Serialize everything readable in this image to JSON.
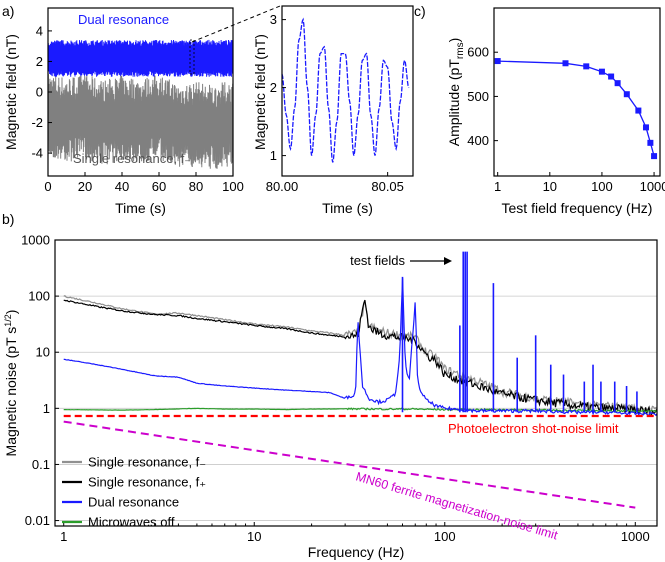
{
  "figure": {
    "panel_labels": [
      "a)",
      "b)",
      "c)"
    ]
  },
  "chart_data": [
    {
      "type": "line",
      "panel": "a-left",
      "xlabel": "Time (s)",
      "ylabel": "Magnetic field (nT)",
      "xlim": [
        0,
        100
      ],
      "ylim": [
        -5.5,
        5.5
      ],
      "xticks": [
        "0",
        "20",
        "40",
        "60",
        "80",
        "100"
      ],
      "yticks": [
        "-4",
        "-2",
        "0",
        "2",
        "4"
      ],
      "series": [
        {
          "name": "Dual resonance",
          "color": "#1a1aff",
          "center": 2.2,
          "half_width": 1.1
        },
        {
          "name": "Single resonance, f₋",
          "color": "#808080",
          "x": [
            0,
            10,
            20,
            30,
            40,
            50,
            60,
            70,
            80,
            90,
            100
          ],
          "y": [
            -1.5,
            -1.8,
            -1.6,
            -2.0,
            -1.7,
            -1.9,
            -1.6,
            -2.2,
            -2.1,
            -2.3,
            -2.0
          ]
        }
      ],
      "annotations": [
        "Dual resonance",
        "Single resonance, f₋"
      ]
    },
    {
      "type": "line",
      "panel": "a-zoom",
      "xlabel": "Time (s)",
      "ylabel": "Magnetic field (nT)",
      "xlim": [
        80.0,
        80.062
      ],
      "ylim": [
        0.7,
        3.2
      ],
      "xticks": [
        "80.00",
        "80.05"
      ],
      "yticks": [
        "1",
        "2",
        "3"
      ],
      "series": [
        {
          "name": "Dual resonance",
          "color": "#1a1aff",
          "x": [
            80.0,
            80.002,
            80.004,
            80.006,
            80.008,
            80.01,
            80.012,
            80.014,
            80.016,
            80.018,
            80.02,
            80.022,
            80.024,
            80.026,
            80.028,
            80.03,
            80.032,
            80.034,
            80.036,
            80.038,
            80.04,
            80.042,
            80.044,
            80.046,
            80.048,
            80.05,
            80.052,
            80.054,
            80.056,
            80.058,
            80.06
          ],
          "y": [
            2.2,
            1.6,
            1.1,
            1.7,
            2.7,
            3.0,
            2.0,
            1.0,
            1.6,
            2.5,
            2.6,
            1.7,
            0.9,
            1.5,
            2.5,
            2.5,
            1.8,
            1.0,
            1.6,
            2.4,
            2.5,
            1.6,
            1.0,
            1.7,
            2.4,
            2.3,
            1.5,
            1.1,
            1.8,
            2.4,
            2.0
          ]
        }
      ]
    },
    {
      "type": "line",
      "panel": "c",
      "xlabel": "Test field frequency (Hz)",
      "ylabel": "Amplitude (pT",
      "ylabel_sub": "rms",
      "ylabel_end": ")",
      "xscale": "log",
      "xlim": [
        0.85,
        1300
      ],
      "ylim": [
        320,
        700
      ],
      "xticks": [
        "1",
        "10",
        "100",
        "1000"
      ],
      "yticks": [
        "400",
        "500",
        "600"
      ],
      "series": [
        {
          "name": "Amplitude",
          "color": "#1a1aff",
          "x": [
            1,
            20,
            50,
            100,
            150,
            200,
            300,
            500,
            700,
            850,
            1000
          ],
          "y": [
            580,
            575,
            568,
            556,
            545,
            530,
            505,
            468,
            430,
            395,
            365
          ]
        }
      ]
    },
    {
      "type": "line",
      "panel": "b",
      "xlabel": "Frequency (Hz)",
      "ylabel": "Magnetic noise (pT s",
      "ylabel_sup": "1/2",
      "ylabel_end": ")",
      "xscale": "log",
      "yscale": "log",
      "xlim": [
        0.9,
        1300
      ],
      "ylim": [
        0.008,
        1000
      ],
      "grid": "horizontal",
      "xticks": [
        "1",
        "10",
        "100",
        "1000"
      ],
      "yticks": [
        "0.01",
        "0.1",
        "1",
        "10",
        "100",
        "1000"
      ],
      "legend": "bottom-left",
      "series": [
        {
          "name": "Single resonance, f₋",
          "color": "#909090",
          "x": [
            1,
            1.5,
            2,
            3,
            4,
            5,
            7,
            10,
            15,
            20,
            25,
            30,
            35,
            38,
            40,
            45,
            50,
            60,
            70,
            80,
            90,
            100,
            150,
            200,
            300,
            500,
            700,
            1000,
            1300
          ],
          "y": [
            100,
            75,
            60,
            48,
            50,
            45,
            38,
            32,
            28,
            24,
            22,
            20,
            22,
            70,
            30,
            24,
            22,
            20,
            18,
            10,
            8,
            5,
            3,
            2,
            1.5,
            1.2,
            1.1,
            1.0,
            0.9
          ]
        },
        {
          "name": "Single resonance, f₊",
          "color": "#000000",
          "x": [
            1,
            1.5,
            2,
            3,
            4,
            5,
            7,
            10,
            15,
            20,
            25,
            30,
            35,
            38,
            40,
            45,
            50,
            60,
            70,
            80,
            90,
            100,
            150,
            200,
            300,
            500,
            700,
            1000,
            1300
          ],
          "y": [
            85,
            65,
            55,
            47,
            45,
            40,
            35,
            30,
            26,
            22,
            20,
            19,
            20,
            90,
            28,
            22,
            20,
            18,
            16,
            9,
            7,
            4,
            2.5,
            1.8,
            1.4,
            1.1,
            1.0,
            0.95,
            0.85
          ]
        },
        {
          "name": "Dual resonance",
          "color": "#1a1aff",
          "x": [
            1,
            1.5,
            2,
            3,
            4,
            5,
            7,
            10,
            15,
            20,
            25,
            30,
            34,
            35,
            37,
            40,
            45,
            50,
            55,
            58,
            60,
            62,
            65,
            70,
            72,
            75,
            80,
            90,
            100,
            150,
            200,
            300,
            500,
            700,
            1000,
            1300
          ],
          "y": [
            7.5,
            6,
            5,
            3.8,
            3.6,
            2.8,
            2.5,
            2.3,
            2.1,
            2.0,
            1.9,
            1.5,
            1.8,
            38,
            2.5,
            1.5,
            1.3,
            1.4,
            1.8,
            8,
            220,
            6,
            3,
            80,
            3,
            2,
            1.4,
            1.1,
            1.0,
            0.9,
            0.9,
            0.9,
            0.85,
            0.85,
            0.8,
            0.8
          ]
        },
        {
          "name": "Microwaves off",
          "color": "#2a9d2a",
          "x": [
            1,
            2,
            3,
            5,
            7,
            10,
            15,
            20,
            30,
            50,
            70,
            100,
            150,
            200,
            300,
            500,
            700,
            1000,
            1300
          ],
          "y": [
            0.95,
            0.93,
            0.95,
            1.0,
            0.97,
            0.97,
            0.95,
            0.97,
            0.98,
            0.97,
            0.97,
            0.95,
            0.95,
            0.95,
            0.93,
            0.92,
            0.9,
            0.9,
            0.9
          ]
        },
        {
          "name": "Photoelectron shot-noise limit",
          "color": "#ff0000",
          "dashed": true,
          "x": [
            1,
            1300
          ],
          "y": [
            0.73,
            0.73
          ]
        },
        {
          "name": "MN60 ferrite magnetization-noise limit",
          "color": "#cc00cc",
          "dashed": true,
          "x": [
            1,
            1000
          ],
          "y": [
            0.58,
            0.017
          ]
        }
      ],
      "peaks": {
        "color": "#1a1aff",
        "x": [
          60,
          120,
          125,
          128,
          131,
          180,
          240,
          300,
          360,
          420,
          540,
          600,
          660,
          780,
          900,
          1020
        ],
        "y": [
          220,
          30,
          620,
          620,
          620,
          170,
          8,
          20,
          6,
          4,
          3,
          6,
          3,
          3,
          2.5,
          2
        ]
      },
      "annotations": {
        "test_fields": "test fields",
        "shot_noise": "Photoelectron shot-noise limit",
        "ferrite": "MN60 ferrite magnetization-noise limit"
      }
    }
  ]
}
